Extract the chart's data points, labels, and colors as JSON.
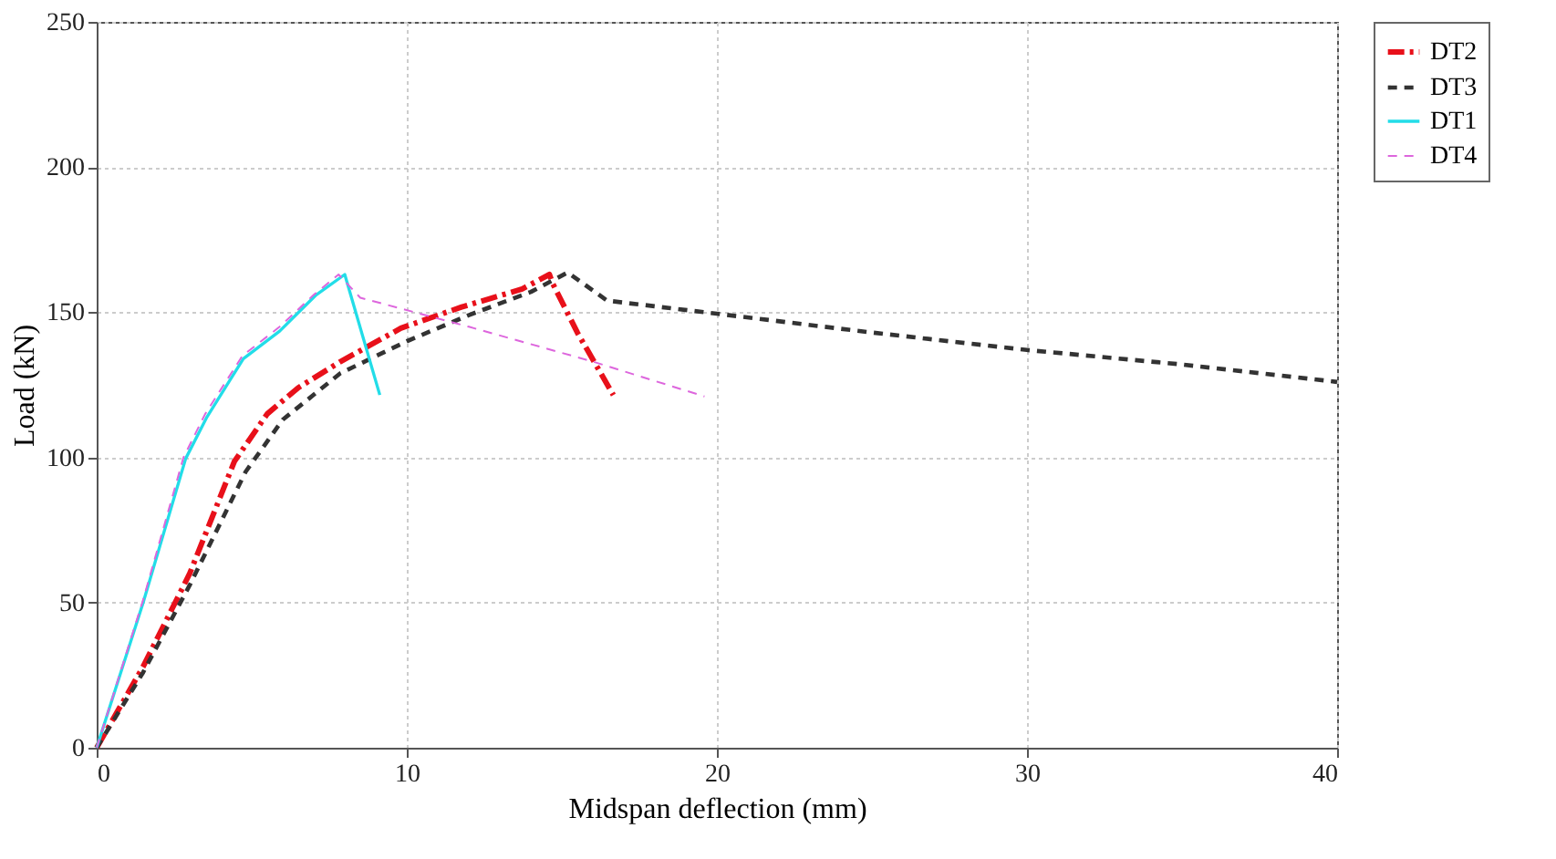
{
  "chart_data": {
    "type": "line",
    "xlabel": "Midspan deflection (mm)",
    "ylabel": "Load (kN)",
    "xlim": [
      0,
      40
    ],
    "xticks": [
      0,
      10,
      20,
      30,
      40
    ],
    "ylim": [
      0,
      250
    ],
    "yticks": [
      0,
      50,
      100,
      150,
      200,
      250
    ],
    "grid": true,
    "legend": "right",
    "marker": "none",
    "series": [
      {
        "name": "DT2",
        "color": "#e8101a",
        "line_style": "dashdot",
        "x": [
          0,
          1.5,
          3,
          4.44,
          5.5,
          6.5,
          7.86,
          9.81,
          11.77,
          13.72,
          14.6,
          14.7,
          15.5,
          16.66
        ],
        "values": [
          0,
          28,
          60,
          98.6,
          115,
          124,
          133,
          144.5,
          151.8,
          158,
          163,
          160,
          143,
          121.5
        ]
      },
      {
        "name": "DT3",
        "color": "#333333",
        "line_style": "dashed",
        "x": [
          0,
          1.5,
          3,
          4.8,
          6,
          7.86,
          10,
          12,
          14,
          15.19,
          16.46,
          20,
          25,
          30,
          35,
          40
        ],
        "values": [
          0,
          26,
          56,
          95,
          113,
          129,
          140,
          149,
          157,
          163.7,
          154,
          149.5,
          143,
          137,
          132,
          126
        ]
      },
      {
        "name": "DT1",
        "color": "#22dde8",
        "line_style": "solid",
        "x": [
          0,
          1.5,
          2.87,
          3.56,
          4.73,
          5.9,
          7.08,
          8.0,
          9.13
        ],
        "values": [
          0,
          50,
          99.6,
          114,
          134,
          143.5,
          156,
          163,
          121.5
        ]
      },
      {
        "name": "DT4",
        "color": "#dd66dd",
        "line_style": "dashed",
        "x": [
          0,
          1.5,
          2.8,
          3.5,
          4.7,
          5.9,
          7.0,
          7.8,
          8.5,
          12,
          16,
          19.6
        ],
        "values": [
          0,
          51,
          100,
          115,
          135,
          145,
          156,
          163,
          155,
          145,
          133,
          121
        ]
      }
    ]
  }
}
